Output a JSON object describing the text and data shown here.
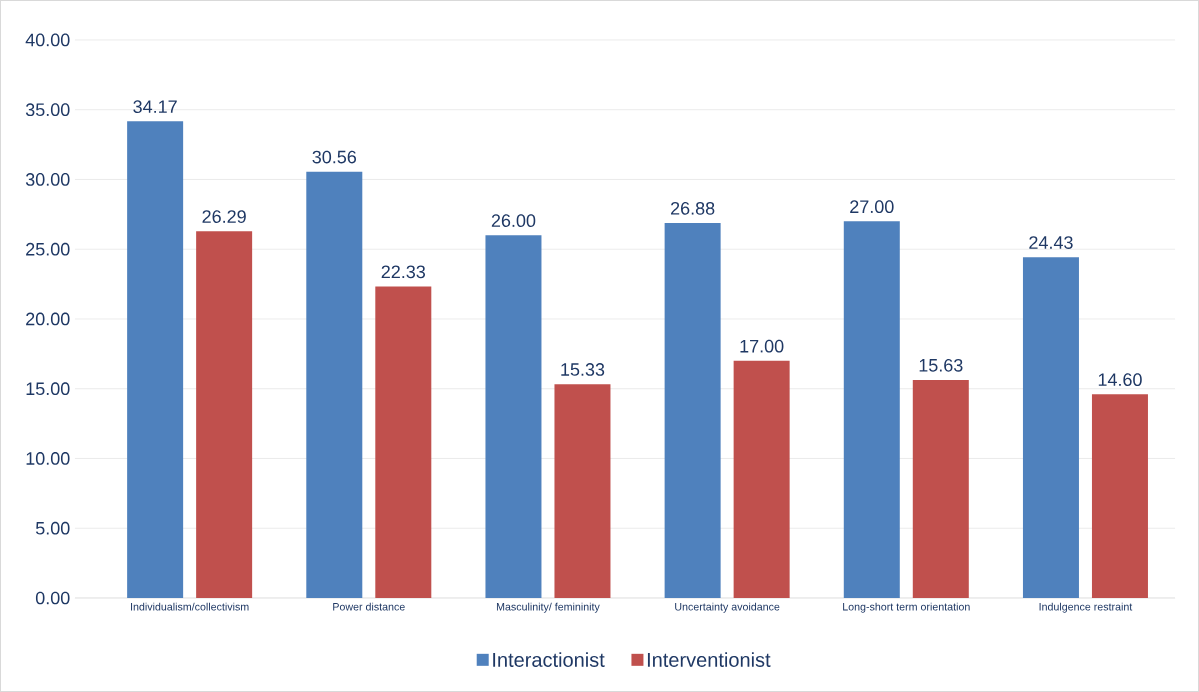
{
  "chart_data": {
    "type": "bar",
    "categories": [
      "Individualism/collectivism",
      "Power distance",
      "Masculinity/ femininity",
      "Uncertainty avoidance",
      "Long-short term orientation",
      "Indulgence restraint"
    ],
    "series": [
      {
        "name": "Interactionist",
        "color": "#4f81bd",
        "values": [
          34.17,
          30.56,
          26.0,
          26.88,
          27.0,
          24.43
        ],
        "value_labels": [
          "34.17",
          "30.56",
          "26.00",
          "26.88",
          "27.00",
          "24.43"
        ]
      },
      {
        "name": "Interventionist",
        "color": "#c0504d",
        "values": [
          26.29,
          22.33,
          15.33,
          17.0,
          15.63,
          14.6
        ],
        "value_labels": [
          "26.29",
          "22.33",
          "15.33",
          "17.00",
          "15.63",
          "14.60"
        ]
      }
    ],
    "ylim": [
      0,
      40
    ],
    "yticks": [
      {
        "value": 0,
        "label": "0.00"
      },
      {
        "value": 5,
        "label": "5.00"
      },
      {
        "value": 10,
        "label": "10.00"
      },
      {
        "value": 15,
        "label": "15.00"
      },
      {
        "value": 20,
        "label": "20.00"
      },
      {
        "value": 25,
        "label": "25.00"
      },
      {
        "value": 30,
        "label": "30.00"
      },
      {
        "value": 35,
        "label": "35.00"
      },
      {
        "value": 40,
        "label": "40.00"
      }
    ],
    "grid": "y",
    "legend": "bottom"
  }
}
